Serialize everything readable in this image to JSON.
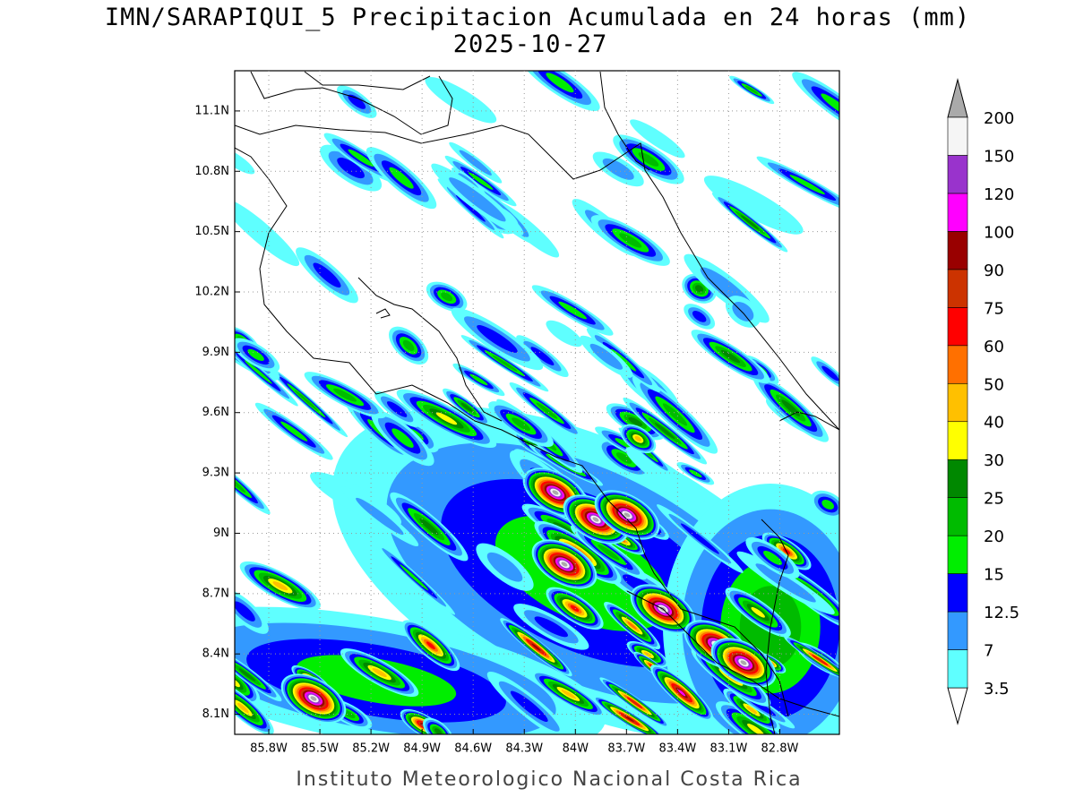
{
  "map": {
    "title": "IMN/SARAPIQUI_5 Precipitacion Acumulada en 24 horas (mm)",
    "subtitle": "2025-10-27",
    "footer": "Instituto Meteorologico Nacional Costa Rica",
    "lonlim": [
      -86.0,
      -82.45
    ],
    "latlim": [
      8.0,
      11.3
    ],
    "lat_ticks": [
      {
        "value": 11.1,
        "label": "11.1N"
      },
      {
        "value": 10.8,
        "label": "10.8N"
      },
      {
        "value": 10.5,
        "label": "10.5N"
      },
      {
        "value": 10.2,
        "label": "10.2N"
      },
      {
        "value": 9.9,
        "label": "9.9N"
      },
      {
        "value": 9.6,
        "label": "9.6N"
      },
      {
        "value": 9.3,
        "label": "9.3N"
      },
      {
        "value": 9.0,
        "label": "9N"
      },
      {
        "value": 8.7,
        "label": "8.7N"
      },
      {
        "value": 8.4,
        "label": "8.4N"
      },
      {
        "value": 8.1,
        "label": "8.1N"
      }
    ],
    "lon_ticks": [
      {
        "value": -85.8,
        "label": "85.8W"
      },
      {
        "value": -85.5,
        "label": "85.5W"
      },
      {
        "value": -85.2,
        "label": "85.2W"
      },
      {
        "value": -84.9,
        "label": "84.9W"
      },
      {
        "value": -84.6,
        "label": "84.6W"
      },
      {
        "value": -84.3,
        "label": "84.3W"
      },
      {
        "value": -84.0,
        "label": "84W"
      },
      {
        "value": -83.7,
        "label": "83.7W"
      },
      {
        "value": -83.4,
        "label": "83.4W"
      },
      {
        "value": -83.1,
        "label": "83.1W"
      },
      {
        "value": -82.8,
        "label": "82.8W"
      }
    ],
    "grid": true,
    "colorbar": {
      "levels": [
        3.5,
        7,
        12.5,
        15,
        20,
        25,
        30,
        40,
        50,
        60,
        75,
        90,
        100,
        120,
        150,
        200
      ],
      "colors": [
        "#5fffff",
        "#3399ff",
        "#0000ff",
        "#00ee00",
        "#00bb00",
        "#008800",
        "#ffff00",
        "#ffc000",
        "#ff7000",
        "#ff0000",
        "#cc3300",
        "#990000",
        "#ff00ff",
        "#9933cc",
        "#f5f5f5"
      ],
      "under_color": "#ffffff",
      "over_color": "#aaaaaa"
    }
  }
}
